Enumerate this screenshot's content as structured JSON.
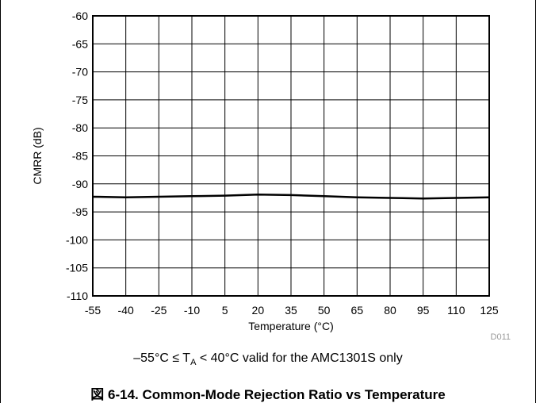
{
  "chart_data": {
    "type": "line",
    "title": "",
    "xlabel": "Temperature (°C)",
    "ylabel": "CMRR (dB)",
    "xlim": [
      -55,
      125
    ],
    "ylim": [
      -110,
      -60
    ],
    "x_ticks": [
      -55,
      -40,
      -25,
      -10,
      5,
      20,
      35,
      50,
      65,
      80,
      95,
      110,
      125
    ],
    "y_ticks": [
      -60,
      -65,
      -70,
      -75,
      -80,
      -85,
      -90,
      -95,
      -100,
      -105,
      -110
    ],
    "grid": true,
    "series": [
      {
        "x": [
          -55,
          -40,
          -25,
          -10,
          5,
          20,
          35,
          50,
          65,
          80,
          95,
          110,
          125
        ],
        "y": [
          -92.3,
          -92.4,
          -92.3,
          -92.2,
          -92.1,
          -91.9,
          -92.0,
          -92.2,
          -92.4,
          -92.5,
          -92.6,
          -92.5,
          -92.4
        ]
      }
    ]
  },
  "code_label": "D011",
  "note": {
    "prefix": "–55°C ≤ T",
    "subscript": "A",
    "suffix": " < 40°C valid for the AMC1301S only"
  },
  "caption": "図 6-14. Common-Mode Rejection Ratio vs Temperature"
}
